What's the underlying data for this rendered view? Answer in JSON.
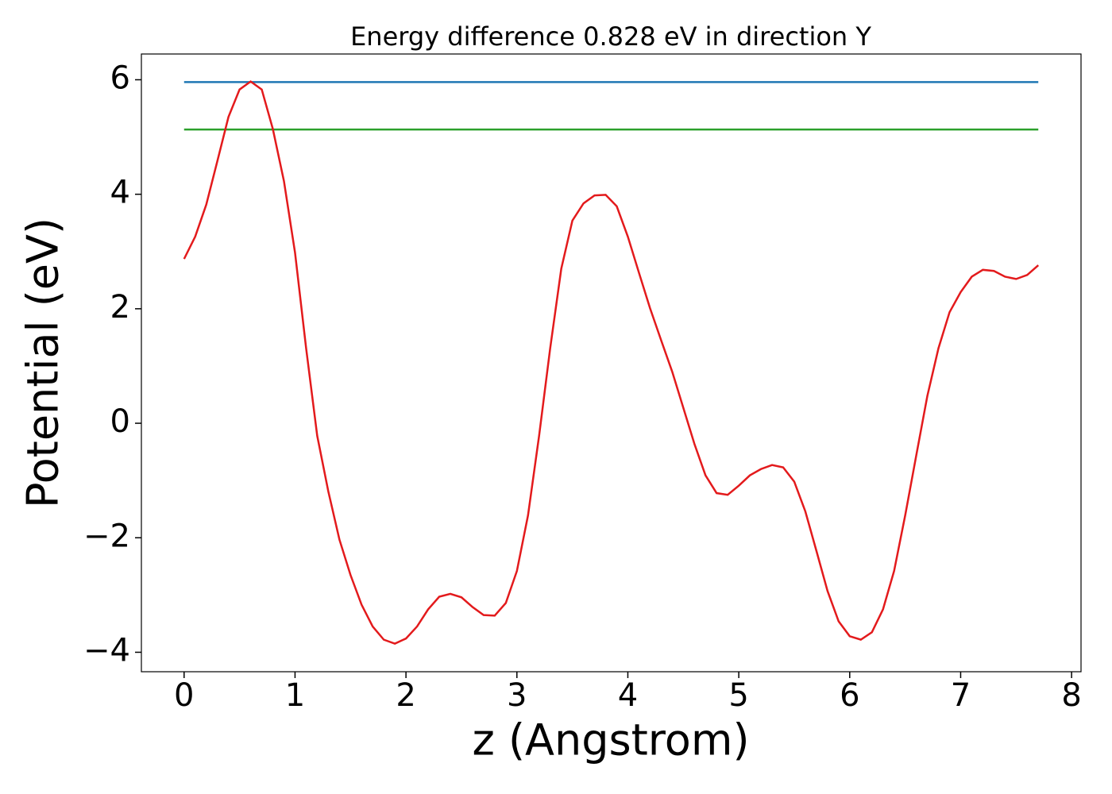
{
  "chart_data": {
    "type": "line",
    "title": "Energy difference 0.828 eV in direction Y",
    "xlabel": "z (Angstrom)",
    "ylabel": "Potential (eV)",
    "xlim": [
      -0.385,
      8.085
    ],
    "ylim": [
      -4.34,
      6.45
    ],
    "xticks": [
      0,
      1,
      2,
      3,
      4,
      5,
      6,
      7,
      8
    ],
    "yticks": [
      {
        "value": -4,
        "label": "−4"
      },
      {
        "value": -2,
        "label": "−2"
      },
      0,
      2,
      4,
      6
    ],
    "series": [
      {
        "color": "#1f77b4",
        "x": [
          0,
          7.7
        ],
        "values": [
          5.96,
          5.96
        ]
      },
      {
        "color": "#2ca02c",
        "x": [
          0,
          7.7
        ],
        "values": [
          5.13,
          5.13
        ]
      },
      {
        "color": "#e31a1c",
        "x": [
          0,
          0.1,
          0.2,
          0.3,
          0.4,
          0.5,
          0.6,
          0.7,
          0.8,
          0.9,
          1.0,
          1.1,
          1.2,
          1.3,
          1.4,
          1.5,
          1.6,
          1.7,
          1.8,
          1.9,
          2.0,
          2.1,
          2.2,
          2.3,
          2.4,
          2.5,
          2.6,
          2.7,
          2.8,
          2.9,
          3.0,
          3.1,
          3.2,
          3.3,
          3.4,
          3.5,
          3.6,
          3.7,
          3.8,
          3.9,
          4.0,
          4.1,
          4.2,
          4.3,
          4.4,
          4.5,
          4.6,
          4.7,
          4.8,
          4.9,
          5.0,
          5.1,
          5.2,
          5.3,
          5.4,
          5.5,
          5.6,
          5.7,
          5.8,
          5.9,
          6.0,
          6.1,
          6.2,
          6.3,
          6.4,
          6.5,
          6.6,
          6.7,
          6.8,
          6.9,
          7.0,
          7.1,
          7.2,
          7.3,
          7.4,
          7.5,
          7.6,
          7.7
        ],
        "values": [
          2.87,
          3.26,
          3.82,
          4.58,
          5.35,
          5.83,
          5.97,
          5.83,
          5.14,
          4.23,
          2.98,
          1.31,
          -0.22,
          -1.19,
          -2.03,
          -2.65,
          -3.17,
          -3.55,
          -3.78,
          -3.85,
          -3.76,
          -3.55,
          -3.25,
          -3.03,
          -2.98,
          -3.04,
          -3.21,
          -3.35,
          -3.36,
          -3.14,
          -2.58,
          -1.61,
          -0.22,
          1.31,
          2.7,
          3.54,
          3.84,
          3.98,
          3.99,
          3.79,
          3.26,
          2.63,
          2.01,
          1.45,
          0.9,
          0.27,
          -0.36,
          -0.91,
          -1.22,
          -1.25,
          -1.09,
          -0.91,
          -0.8,
          -0.73,
          -0.77,
          -1.02,
          -1.54,
          -2.23,
          -2.93,
          -3.46,
          -3.72,
          -3.78,
          -3.65,
          -3.25,
          -2.58,
          -1.61,
          -0.56,
          0.48,
          1.31,
          1.94,
          2.29,
          2.56,
          2.68,
          2.66,
          2.56,
          2.52,
          2.59,
          2.76
        ]
      }
    ]
  }
}
